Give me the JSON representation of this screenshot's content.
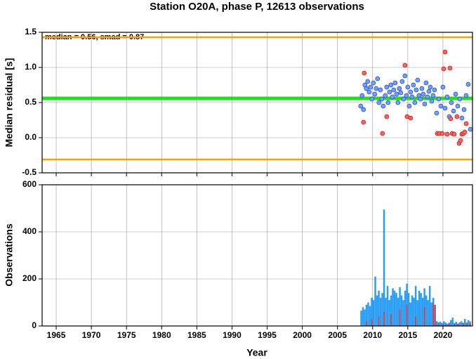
{
  "chart_data": [
    {
      "type": "scatter",
      "title": "Station O20A, phase P, 12613 observations",
      "y_label": "Median residual [s]",
      "annotation": "median = 0.56, smad = 0.87",
      "xlim": [
        1963,
        2024.2
      ],
      "xticks": [
        1965,
        1970,
        1975,
        1980,
        1985,
        1990,
        1995,
        2000,
        2005,
        2010,
        2015,
        2020
      ],
      "ylim": [
        -0.5,
        1.5
      ],
      "yticks": [
        {
          "value": -0.5,
          "label": "-0.5"
        },
        {
          "value": 0,
          "label": "0.0"
        },
        0.5,
        {
          "value": 1,
          "label": "1.0"
        },
        1.5
      ],
      "grid": true,
      "reference_lines": [
        {
          "value": 1.43,
          "color": "#f5a300"
        },
        {
          "value": 0.56,
          "color": "#22dd22"
        },
        {
          "value": -0.31,
          "color": "#f5a300"
        }
      ],
      "series": [
        {
          "color": "#6fa0ff",
          "x": [
            2008.3,
            2008.5,
            2008.7,
            2008.9,
            2009.1,
            2009.3,
            2009.5,
            2009.7,
            2009.9,
            2010.1,
            2010.3,
            2010.5,
            2010.7,
            2010.9,
            2011.1,
            2011.3,
            2011.5,
            2011.8,
            2012.0,
            2012.2,
            2012.4,
            2012.6,
            2012.8,
            2013.0,
            2013.2,
            2013.4,
            2013.6,
            2013.8,
            2014.0,
            2014.2,
            2014.4,
            2014.6,
            2014.8,
            2015.0,
            2015.2,
            2015.4,
            2015.6,
            2015.8,
            2016.0,
            2016.2,
            2016.4,
            2016.6,
            2016.8,
            2017.0,
            2017.2,
            2017.4,
            2017.6,
            2017.8,
            2018.0,
            2018.2,
            2018.4,
            2018.6,
            2018.8,
            2019.1,
            2019.4,
            2019.7,
            2020.0,
            2020.3,
            2020.6,
            2020.9,
            2021.2,
            2021.5,
            2021.8,
            2022.1,
            2022.4,
            2022.7,
            2023.0,
            2023.3,
            2023.6,
            2023.9
          ],
          "values": [
            0.45,
            0.6,
            0.4,
            0.75,
            0.7,
            0.8,
            0.65,
            0.72,
            0.55,
            0.78,
            0.62,
            0.7,
            0.84,
            0.5,
            0.68,
            0.55,
            0.45,
            0.6,
            0.72,
            0.5,
            0.65,
            0.75,
            0.58,
            0.68,
            0.78,
            0.62,
            0.5,
            0.7,
            0.64,
            0.8,
            0.55,
            0.88,
            0.6,
            0.72,
            0.45,
            0.65,
            0.58,
            0.75,
            0.5,
            0.68,
            0.82,
            0.6,
            0.55,
            0.7,
            0.62,
            0.48,
            0.78,
            0.58,
            0.66,
            0.72,
            0.52,
            0.6,
            0.68,
            0.35,
            0.55,
            0.45,
            0.72,
            0.42,
            0.58,
            0.3,
            0.5,
            0.38,
            0.62,
            0.45,
            0.55,
            0.28,
            0.4,
            0.6,
            0.76,
            0.12
          ]
        },
        {
          "color": "#ff6060",
          "x": [
            2008.8,
            2008.7,
            2011.4,
            2012.0,
            2014.6,
            2014.9,
            2015.4,
            2019.2,
            2019.5,
            2019.9,
            2020.1,
            2020.3,
            2020.6,
            2021.0,
            2021.1,
            2021.3,
            2021.6,
            2022.0,
            2022.3,
            2022.5,
            2022.7,
            2022.9,
            2023.1,
            2023.3
          ],
          "values": [
            0.92,
            0.22,
            0.06,
            0.3,
            1.03,
            0.3,
            0.28,
            0.06,
            0.06,
            0.06,
            0.98,
            1.22,
            0.05,
            0.99,
            0.27,
            0.06,
            0.05,
            0.3,
            -0.08,
            -0.04,
            0.05,
            0.06,
            0.08,
            0.2
          ]
        }
      ]
    },
    {
      "type": "histogram",
      "y_label": "Observations",
      "x_label": "Year",
      "xlim": [
        1963,
        2024.2
      ],
      "xticks": [
        1965,
        1970,
        1975,
        1980,
        1985,
        1990,
        1995,
        2000,
        2005,
        2010,
        2015,
        2020
      ],
      "ylim": [
        0,
        600
      ],
      "yticks": [
        0,
        200,
        400,
        600
      ],
      "grid": true,
      "bins": [
        2008.25,
        2008.5,
        2008.75,
        2009,
        2009.25,
        2009.5,
        2009.75,
        2010,
        2010.25,
        2010.5,
        2010.75,
        2011,
        2011.25,
        2011.5,
        2011.75,
        2012,
        2012.25,
        2012.5,
        2012.75,
        2013,
        2013.25,
        2013.5,
        2013.75,
        2014,
        2014.25,
        2014.5,
        2014.75,
        2015,
        2015.25,
        2015.5,
        2015.75,
        2016,
        2016.25,
        2016.5,
        2016.75,
        2017,
        2017.25,
        2017.5,
        2017.75,
        2018,
        2018.25,
        2018.5,
        2018.75,
        2019,
        2019.25,
        2019.5,
        2019.75,
        2020,
        2020.25,
        2020.5,
        2020.75,
        2021,
        2021.25,
        2021.5,
        2021.75,
        2022,
        2022.25,
        2022.5,
        2022.75,
        2023,
        2023.25,
        2023.5,
        2023.75,
        2024
      ],
      "series": [
        {
          "color": "#2a9df4",
          "values": [
            65,
            80,
            70,
            90,
            100,
            85,
            120,
            110,
            210,
            130,
            150,
            120,
            140,
            495,
            120,
            170,
            110,
            130,
            160,
            150,
            140,
            120,
            165,
            130,
            110,
            150,
            180,
            140,
            100,
            130,
            120,
            170,
            110,
            150,
            140,
            120,
            160,
            130,
            110,
            170,
            100,
            120,
            90,
            20,
            15,
            18,
            12,
            20,
            15,
            10,
            14,
            25,
            35,
            12,
            18,
            10,
            15,
            20,
            12,
            30,
            15,
            25,
            12
          ]
        },
        {
          "color": "#e83030",
          "values": [
            0,
            0,
            0,
            20,
            0,
            0,
            30,
            0,
            0,
            0,
            40,
            0,
            0,
            60,
            0,
            0,
            0,
            50,
            0,
            0,
            0,
            0,
            70,
            0,
            0,
            0,
            90,
            0,
            0,
            0,
            0,
            40,
            0,
            0,
            0,
            0,
            80,
            0,
            0,
            0,
            0,
            100,
            90,
            5,
            8,
            0,
            10,
            0,
            5,
            0,
            12,
            0,
            0,
            8,
            0,
            10,
            0,
            0,
            14,
            0,
            8,
            0,
            20
          ]
        }
      ]
    }
  ]
}
